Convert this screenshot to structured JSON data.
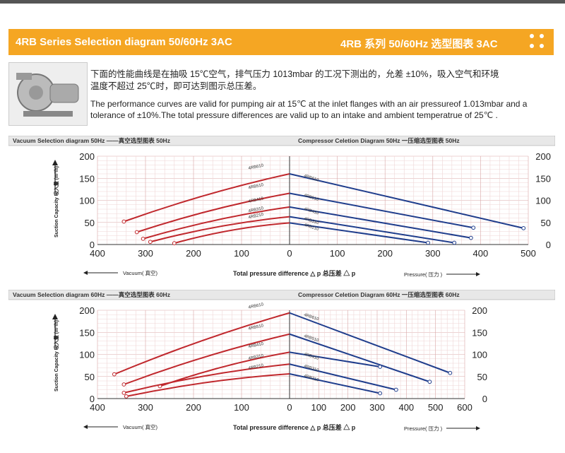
{
  "banner": {
    "title_en": "4RB Series Selection diagram 50/60Hz 3AC",
    "title_cn": "4RB 系列 50/60Hz 选型图表 3AC",
    "color": "#f5a623"
  },
  "intro": {
    "cn_line1": "下面的性能曲线是在抽吸 15℃空气，排气压力 1013mbar 的工况下测出的，允差 ±10%，吸入空气和环境",
    "cn_line2": "温度不超过 25℃时，即可达到图示总压差。",
    "en_line1": "The performance curves are valid for pumping air at 15℃ at the inlet flanges with an air pressureof 1.013mbar and a",
    "en_line2": "tolerance of ±10%.The total pressure differences are valid up to an intake and ambient temperatrue of 25℃ ."
  },
  "chart_data": [
    {
      "type": "line",
      "panel_left_title": "Vacuum Selection diagram 50Hz ——真空选型图表 50Hz",
      "panel_right_title": "Compressor Celetion Diagram 50Hz 一压缩选型图表 50Hz",
      "ylabel": "Suction Capacity 吸入量 (m³/h)",
      "xlabel": "Total pressure difference △ p 总压差 △ p",
      "left_axis_label": "Vacuum( 真空)",
      "right_axis_label": "Pressure( 压力 )",
      "ylim": [
        0,
        200
      ],
      "yticks": [
        "0",
        "50",
        "100",
        "150",
        "200"
      ],
      "left_xticks": [
        "400",
        "300",
        "200",
        "100",
        "0"
      ],
      "right_xticks": [
        "0",
        "100",
        "200",
        "300",
        "400",
        "500"
      ],
      "vacuum_xlim": [
        400,
        0
      ],
      "pressure_xlim": [
        0,
        500
      ],
      "series": [
        {
          "name": "4RB610",
          "vacuum": [
            [
              345,
              52
            ],
            [
              0,
              160
            ]
          ],
          "pressure": [
            [
              0,
              160
            ],
            [
              490,
              37
            ]
          ]
        },
        {
          "name": "4RB510",
          "vacuum": [
            [
              318,
              28
            ],
            [
              0,
              116
            ]
          ],
          "pressure": [
            [
              0,
              116
            ],
            [
              385,
              38
            ]
          ]
        },
        {
          "name": "4RB410",
          "vacuum": [
            [
              305,
              13
            ],
            [
              0,
              85
            ]
          ],
          "pressure": [
            [
              0,
              85
            ],
            [
              380,
              15
            ]
          ]
        },
        {
          "name": "4RB310",
          "vacuum": [
            [
              290,
              6
            ],
            [
              0,
              63
            ]
          ],
          "pressure": [
            [
              0,
              63
            ],
            [
              345,
              4
            ]
          ]
        },
        {
          "name": "4RB210",
          "vacuum": [
            [
              240,
              3
            ],
            [
              0,
              49
            ]
          ],
          "pressure": [
            [
              0,
              49
            ],
            [
              290,
              4
            ]
          ]
        }
      ]
    },
    {
      "type": "line",
      "panel_left_title": "Vacuum Selection diagram 60Hz ——真空选型图表 60Hz",
      "panel_right_title": "Compressor Celetion Diagram 60Hz 一压缩选型图表 60Hz",
      "ylabel": "Suction Capacity 吸入量 (m³/h)",
      "xlabel": "Total pressure difference △ p 总压差 △ p",
      "left_axis_label": "Vacuum( 真空)",
      "right_axis_label": "Pressure( 压力 )",
      "ylim": [
        0,
        200
      ],
      "yticks": [
        "0",
        "50",
        "100",
        "150",
        "200"
      ],
      "left_xticks": [
        "400",
        "300",
        "200",
        "100",
        "0"
      ],
      "right_xticks": [
        "0",
        "100",
        "200",
        "300",
        "400",
        "500",
        "600"
      ],
      "vacuum_xlim": [
        400,
        0
      ],
      "pressure_xlim": [
        0,
        600
      ],
      "series": [
        {
          "name": "4RB610",
          "vacuum": [
            [
              365,
              55
            ],
            [
              0,
              194
            ]
          ],
          "pressure": [
            [
              0,
              194
            ],
            [
              550,
              58
            ]
          ]
        },
        {
          "name": "4RB510",
          "vacuum": [
            [
              345,
              32
            ],
            [
              0,
              146
            ]
          ],
          "pressure": [
            [
              0,
              146
            ],
            [
              480,
              38
            ]
          ]
        },
        {
          "name": "4RB410",
          "vacuum": [
            [
              270,
              28
            ],
            [
              0,
              105
            ]
          ],
          "pressure": [
            [
              0,
              105
            ],
            [
              310,
              72
            ]
          ]
        },
        {
          "name": "4RB310",
          "vacuum": [
            [
              345,
              13
            ],
            [
              0,
              78
            ]
          ],
          "pressure": [
            [
              0,
              78
            ],
            [
              365,
              20
            ]
          ]
        },
        {
          "name": "4RB210",
          "vacuum": [
            [
              340,
              5
            ],
            [
              0,
              56
            ]
          ],
          "pressure": [
            [
              0,
              56
            ],
            [
              310,
              12
            ]
          ]
        }
      ]
    }
  ]
}
